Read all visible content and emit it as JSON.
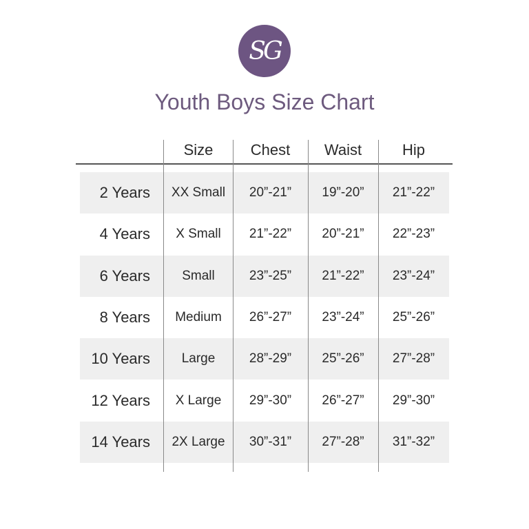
{
  "logo": {
    "text": "SG",
    "color": "#6d5582"
  },
  "title": "Youth Boys Size Chart",
  "headers": [
    "",
    "Size",
    "Chest",
    "Waist",
    "Hip"
  ],
  "rows": [
    [
      "2 Years",
      "XX Small",
      "20”-21”",
      "19”-20”",
      "21”-22”"
    ],
    [
      "4 Years",
      "X Small",
      "21”-22”",
      "20”-21”",
      "22”-23”"
    ],
    [
      "6 Years",
      "Small",
      "23”-25”",
      "21”-22”",
      "23”-24”"
    ],
    [
      "8 Years",
      "Medium",
      "26”-27”",
      "23”-24”",
      "25”-26”"
    ],
    [
      "10 Years",
      "Large",
      "28”-29”",
      "25”-26”",
      "27”-28”"
    ],
    [
      "12 Years",
      "X Large",
      "29”-30”",
      "26”-27”",
      "29”-30”"
    ],
    [
      "14 Years",
      "2X Large",
      "30”-31”",
      "27”-28”",
      "31”-32”"
    ]
  ]
}
